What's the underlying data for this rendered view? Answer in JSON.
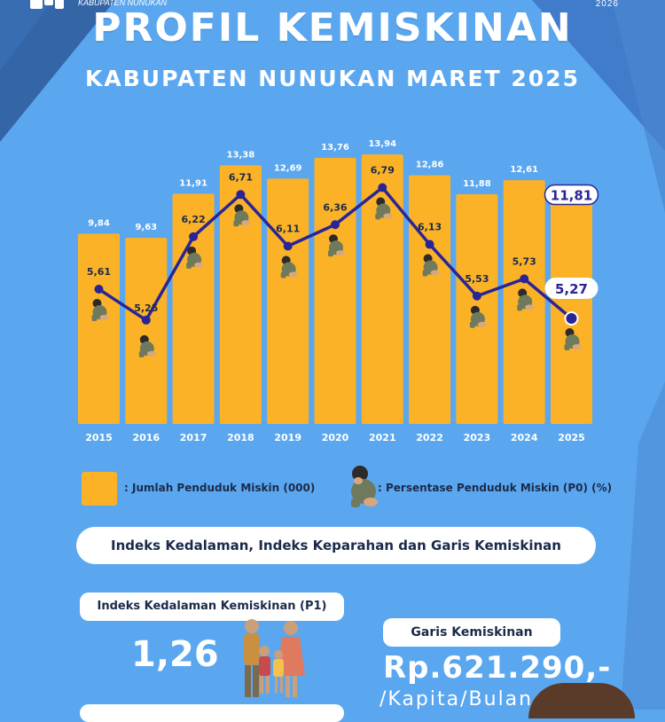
{
  "header": {
    "org": "KABUPATEN NUNUKAN",
    "year": "2026",
    "title": "PROFIL KEMISKINAN",
    "subtitle": "KABUPATEN NUNUKAN MARET 2025"
  },
  "colors": {
    "background": "#5aa7f0",
    "bar": "#fbb227",
    "line": "#2a2596",
    "pill": "#ffffff",
    "text_dark": "#1b2a4a"
  },
  "chart_data": {
    "type": "bar",
    "categories": [
      "2015",
      "2016",
      "2017",
      "2018",
      "2019",
      "2020",
      "2021",
      "2022",
      "2023",
      "2024",
      "2025"
    ],
    "series": [
      {
        "name": ": Jumlah Penduduk Miskin (000)",
        "type": "bar",
        "values": [
          9.84,
          9.63,
          11.91,
          13.38,
          12.69,
          13.76,
          13.94,
          12.86,
          11.88,
          12.61,
          11.81
        ],
        "labels": [
          "9,84",
          "9,63",
          "11,91",
          "13,38",
          "12,69",
          "13,76",
          "13,94",
          "12,86",
          "11,88",
          "12,61",
          "11,81"
        ]
      },
      {
        "name": ": Persentase Penduduk Miskin  (P0) (%)",
        "type": "line",
        "values": [
          5.61,
          5.25,
          6.22,
          6.71,
          6.11,
          6.36,
          6.79,
          6.13,
          5.53,
          5.73,
          5.27
        ],
        "labels": [
          "5,61",
          "5,25",
          "6,22",
          "6,71",
          "6,11",
          "6,36",
          "6,79",
          "6,13",
          "5,53",
          "5,73",
          "5,27"
        ]
      }
    ],
    "legend_position": "bottom"
  },
  "legend": {
    "bar_label": ": Jumlah Penduduk Miskin (000)",
    "line_label": ": Persentase Penduduk Miskin  (P0) (%)",
    "line_icon": "sad-person-icon"
  },
  "section": {
    "title": "Indeks Kedalaman, Indeks Keparahan dan Garis Kemiskinan"
  },
  "p1": {
    "label": "Indeks Kedalaman Kemiskinan (P1)",
    "value": "1,26",
    "icon": "family-icon"
  },
  "garis": {
    "label": "Garis Kemiskinan",
    "value": "Rp.621.290,-",
    "unit": "/Kapita/Bulan"
  }
}
